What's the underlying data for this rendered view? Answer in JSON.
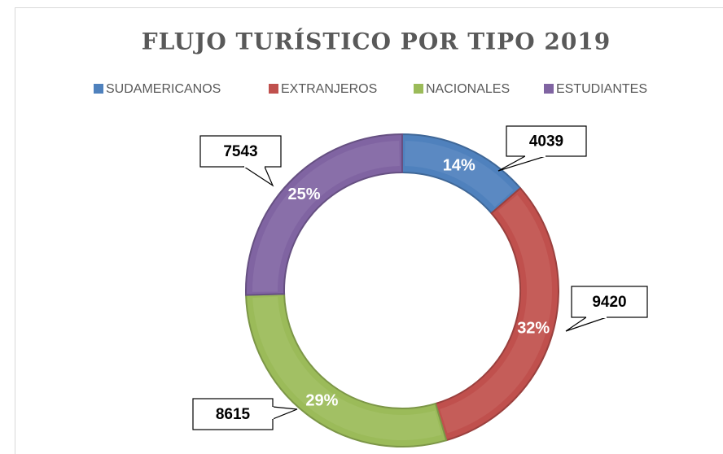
{
  "chart_data": {
    "type": "donut",
    "title": "FLUJO TURÍSTICO POR TIPO 2019",
    "categories": [
      "SUDAMERICANOS",
      "EXTRANJEROS",
      "NACIONALES",
      "ESTUDIANTES"
    ],
    "values": [
      4039,
      9420,
      8615,
      7543
    ],
    "percent_labels": [
      "14%",
      "32%",
      "29%",
      "25%"
    ],
    "colors": [
      "#4f81bd",
      "#c0504d",
      "#9bbb59",
      "#8064a2"
    ],
    "legend": "top"
  }
}
